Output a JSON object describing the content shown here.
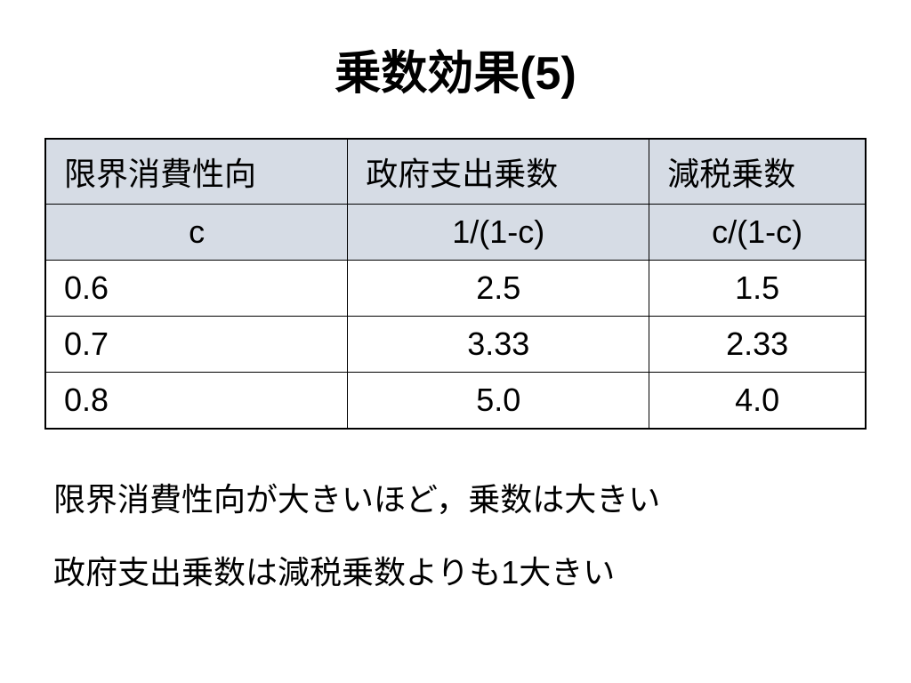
{
  "title": "乗数効果(5)",
  "table": {
    "type": "table",
    "headers": [
      "限界消費性向",
      "政府支出乗数",
      "減税乗数"
    ],
    "formulas": [
      "c",
      "1/(1-c)",
      "c/(1-c)"
    ],
    "rows": [
      [
        "0.6",
        "2.5",
        "1.5"
      ],
      [
        "0.7",
        "3.33",
        "2.33"
      ],
      [
        "0.8",
        "5.0",
        "4.0"
      ]
    ],
    "header_bg_color": "#d6dce5",
    "formula_bg_color": "#d6dce5",
    "border_color": "#000000",
    "font_size": 36
  },
  "notes": {
    "line1": "限界消費性向が大きいほど，乗数は大きい",
    "line2": "政府支出乗数は減税乗数よりも1大きい"
  }
}
